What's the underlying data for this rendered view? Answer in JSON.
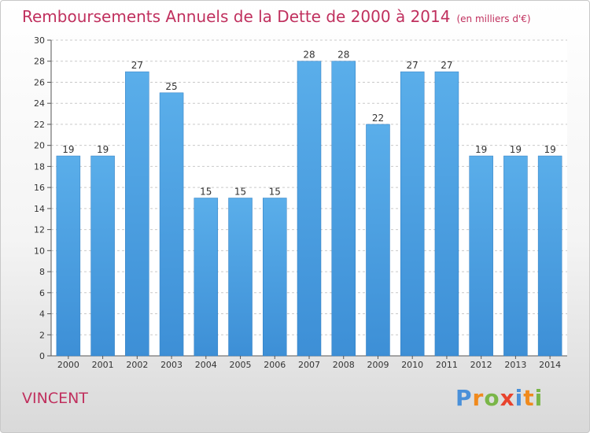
{
  "chart_data": {
    "type": "bar",
    "title": "Remboursements Annuels de la Dette de 2000 à 2014",
    "subtitle": "(en milliers d'€)",
    "categories": [
      "2000",
      "2001",
      "2002",
      "2003",
      "2004",
      "2005",
      "2006",
      "2007",
      "2008",
      "2009",
      "2010",
      "2011",
      "2012",
      "2013",
      "2014"
    ],
    "values": [
      19,
      19,
      27,
      25,
      15,
      15,
      15,
      28,
      28,
      22,
      27,
      27,
      19,
      19,
      19
    ],
    "ylim": [
      0,
      30
    ],
    "yticks": [
      0,
      2,
      4,
      6,
      8,
      10,
      12,
      14,
      16,
      18,
      20,
      22,
      24,
      26,
      28,
      30
    ],
    "grid": true,
    "bar_color": "#3d8fd6",
    "title_color": "#c0305e"
  },
  "footer": {
    "commune": "VINCENT",
    "logo_letters": [
      "P",
      "r",
      "o",
      "x",
      "i",
      "t",
      "i"
    ],
    "logo_colors": [
      "#4a90d9",
      "#f08a1d",
      "#7ab648",
      "#e8432d",
      "#4a90d9",
      "#f08a1d",
      "#7ab648"
    ]
  }
}
